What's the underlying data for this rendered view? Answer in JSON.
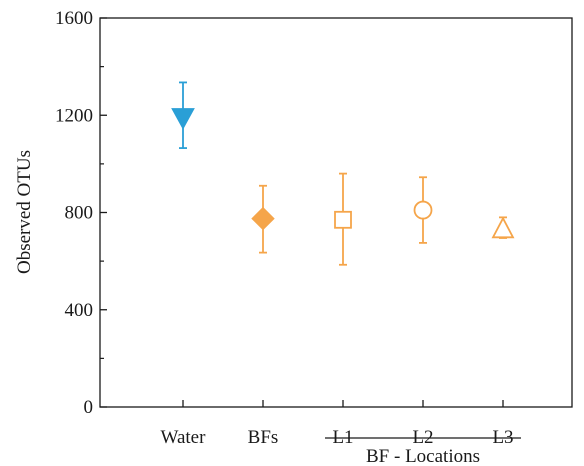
{
  "chart_data": {
    "type": "scatter",
    "title": "",
    "xlabel": "",
    "ylabel": "Observed OTUs",
    "ylim": [
      0,
      1600
    ],
    "yticks": [
      0,
      400,
      800,
      1200,
      1600
    ],
    "grid": false,
    "categories": [
      "Water",
      "BFs",
      "L1",
      "L2",
      "L3"
    ],
    "group_label": "BF - Locations",
    "group_members": [
      "L1",
      "L2",
      "L3"
    ],
    "points": [
      {
        "category": "Water",
        "value": 1190,
        "err_low": 1065,
        "err_high": 1335,
        "marker": "triangle-down",
        "filled": true,
        "color": "#2a9fd6"
      },
      {
        "category": "BFs",
        "value": 775,
        "err_low": 635,
        "err_high": 910,
        "marker": "diamond",
        "filled": true,
        "color": "#f5a54a"
      },
      {
        "category": "L1",
        "value": 770,
        "err_low": 585,
        "err_high": 960,
        "marker": "square",
        "filled": false,
        "color": "#f5a54a"
      },
      {
        "category": "L2",
        "value": 810,
        "err_low": 675,
        "err_high": 945,
        "marker": "circle",
        "filled": false,
        "color": "#f5a54a"
      },
      {
        "category": "L3",
        "value": 735,
        "err_low": 695,
        "err_high": 780,
        "marker": "triangle-up",
        "filled": false,
        "color": "#f5a54a"
      }
    ]
  }
}
